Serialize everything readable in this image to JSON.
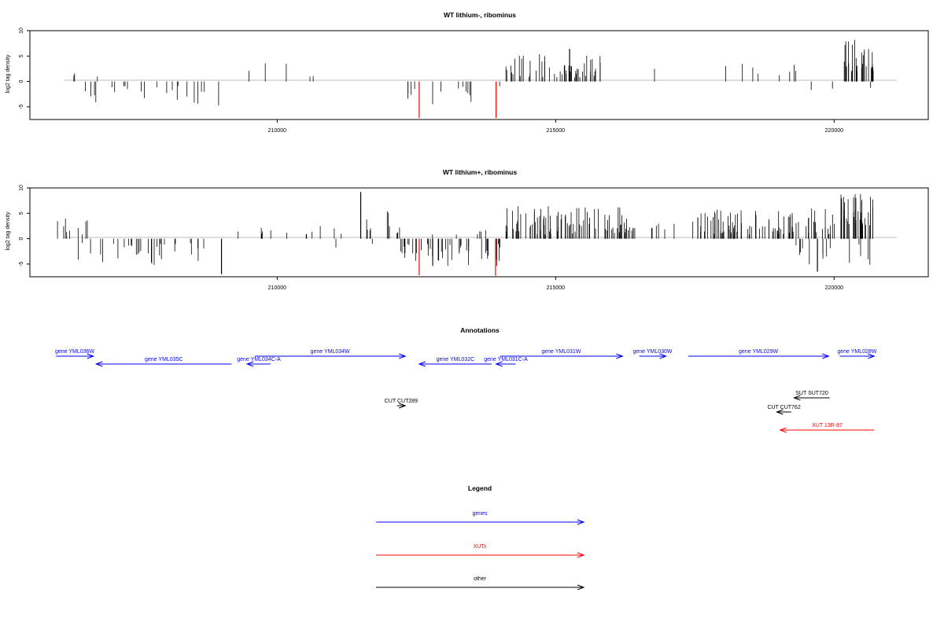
{
  "colors": {
    "bar_default": "#000000",
    "bar_highlight": "#ff0000",
    "genes": "#0000ff",
    "xuts": "#ff0000",
    "other": "#000000",
    "baseline": "#bebebe"
  },
  "chart_data": [
    {
      "type": "bar",
      "title": "WT lithium-, ribominus",
      "ylabel": "log2 tag density",
      "ylim": [
        -7.5,
        10
      ],
      "yticks": [
        -5,
        0,
        5,
        10
      ],
      "xlim": [
        205560,
        221690
      ],
      "xticks": [
        210000,
        215000,
        220000
      ],
      "xtick_labels": [
        "210000",
        "215000",
        "220000"
      ],
      "grid": false,
      "series": [
        {
          "segments": [
            {
              "start": 206100,
              "end": 206450,
              "sign": 1,
              "density": 0.45,
              "min": 0.8,
              "max": 4.6
            },
            {
              "start": 206450,
              "end": 206850,
              "sign": 1,
              "density": 0.08,
              "min": 0.5,
              "max": 3.3
            },
            {
              "start": 206400,
              "end": 209000,
              "sign": -1,
              "density": 0.85,
              "min": 0.8,
              "max": 4.8
            },
            {
              "start": 209400,
              "end": 212100,
              "sign": 1,
              "density": 0.18,
              "min": 0.8,
              "max": 3.6
            },
            {
              "start": 212300,
              "end": 214000,
              "sign": -1,
              "density": 0.75,
              "min": 0.8,
              "max": 4.6
            },
            {
              "start": 214100,
              "end": 215800,
              "sign": 1,
              "density": 3.0,
              "min": 0.8,
              "max": 5.5
            },
            {
              "start": 215800,
              "end": 220150,
              "sign": 1,
              "density": 0.2,
              "min": 0.8,
              "max": 4.6
            },
            {
              "start": 219500,
              "end": 220100,
              "sign": -1,
              "density": 0.35,
              "min": 0.8,
              "max": 4.0
            },
            {
              "start": 220150,
              "end": 220720,
              "sign": 1,
              "density": 6.0,
              "min": 2.0,
              "max": 9.0
            },
            {
              "start": 220300,
              "end": 220700,
              "sign": -1,
              "density": 0.12,
              "min": 0.8,
              "max": 2.6
            }
          ],
          "spikes": [
            {
              "x": 212550,
              "y": -7.2,
              "color": "red"
            },
            {
              "x": 213930,
              "y": -7.2,
              "color": "red"
            },
            {
              "x": 215250,
              "y": 6.4,
              "color": "black"
            }
          ]
        }
      ]
    },
    {
      "type": "bar",
      "title": "WT lithium+, ribominus",
      "ylabel": "log2 tag density",
      "ylim": [
        -7.5,
        10
      ],
      "yticks": [
        -5,
        0,
        5,
        10
      ],
      "xlim": [
        205560,
        221690
      ],
      "xticks": [
        210000,
        215000,
        220000
      ],
      "xtick_labels": [
        "210000",
        "215000",
        "220000"
      ],
      "grid": false,
      "series": [
        {
          "segments": [
            {
              "start": 206000,
              "end": 206600,
              "sign": 1,
              "density": 1.5,
              "min": 0.8,
              "max": 4.4
            },
            {
              "start": 206400,
              "end": 209000,
              "sign": -1,
              "density": 1.2,
              "min": 0.8,
              "max": 5.2
            },
            {
              "start": 209200,
              "end": 211500,
              "sign": 1,
              "density": 0.5,
              "min": 0.8,
              "max": 3.2
            },
            {
              "start": 211500,
              "end": 212200,
              "sign": 1,
              "density": 1.6,
              "min": 0.8,
              "max": 6.0
            },
            {
              "start": 211000,
              "end": 212200,
              "sign": -1,
              "density": 0.2,
              "min": 0.8,
              "max": 2.0
            },
            {
              "start": 212200,
              "end": 214000,
              "sign": -1,
              "density": 2.6,
              "min": 1.0,
              "max": 5.5
            },
            {
              "start": 212600,
              "end": 214000,
              "sign": 1,
              "density": 0.4,
              "min": 0.8,
              "max": 2.0
            },
            {
              "start": 214100,
              "end": 216300,
              "sign": 1,
              "density": 3.8,
              "min": 0.8,
              "max": 6.5
            },
            {
              "start": 216300,
              "end": 217300,
              "sign": 1,
              "density": 1.2,
              "min": 0.8,
              "max": 3.0
            },
            {
              "start": 217300,
              "end": 220100,
              "sign": 1,
              "density": 3.2,
              "min": 0.8,
              "max": 6.0
            },
            {
              "start": 219300,
              "end": 220700,
              "sign": -1,
              "density": 1.0,
              "min": 0.8,
              "max": 5.5
            },
            {
              "start": 220100,
              "end": 220720,
              "sign": 1,
              "density": 7.0,
              "min": 2.5,
              "max": 9.2
            }
          ],
          "spikes": [
            {
              "x": 209000,
              "y": -7.0,
              "color": "black"
            },
            {
              "x": 211500,
              "y": 9.2,
              "color": "black"
            },
            {
              "x": 212550,
              "y": -7.2,
              "color": "red"
            },
            {
              "x": 213920,
              "y": -7.3,
              "color": "red"
            },
            {
              "x": 219700,
              "y": -6.5,
              "color": "black"
            }
          ]
        }
      ]
    }
  ],
  "annotations": {
    "title": "Annotations",
    "features": [
      {
        "label": "gene YML036W",
        "start": 206030,
        "end": 206700,
        "strand": "+",
        "row": 0,
        "type": "genes"
      },
      {
        "label": "gene YML035C",
        "start": 206750,
        "end": 209180,
        "strand": "-",
        "row": 1,
        "type": "genes"
      },
      {
        "label": "gene YML034C-A",
        "start": 209460,
        "end": 209880,
        "strand": "-",
        "row": 1,
        "type": "genes"
      },
      {
        "label": "gene YML034W",
        "start": 209600,
        "end": 212300,
        "strand": "+",
        "row": 0,
        "type": "genes"
      },
      {
        "label": "gene YML032C",
        "start": 212550,
        "end": 213850,
        "strand": "-",
        "row": 1,
        "type": "genes"
      },
      {
        "label": "gene YML031C-A",
        "start": 213930,
        "end": 214280,
        "strand": "-",
        "row": 1,
        "type": "genes"
      },
      {
        "label": "gene YML031W",
        "start": 214000,
        "end": 216200,
        "strand": "+",
        "row": 0,
        "type": "genes"
      },
      {
        "label": "gene YML030W",
        "start": 216500,
        "end": 216980,
        "strand": "+",
        "row": 0,
        "type": "genes"
      },
      {
        "label": "gene YML029W",
        "start": 217380,
        "end": 219900,
        "strand": "+",
        "row": 0,
        "type": "genes"
      },
      {
        "label": "gene YML028W",
        "start": 220100,
        "end": 220720,
        "strand": "+",
        "row": 0,
        "type": "genes"
      },
      {
        "label": "CUT CUT289",
        "start": 212150,
        "end": 212300,
        "strand": "+",
        "row": 2,
        "type": "other"
      },
      {
        "label": "SUT SUT720",
        "start": 219280,
        "end": 219920,
        "strand": "-",
        "row": 3,
        "type": "other"
      },
      {
        "label": "CUT CUT762",
        "start": 218970,
        "end": 219230,
        "strand": "-",
        "row": 4,
        "type": "other"
      },
      {
        "label": "XUT 13R-87",
        "start": 219030,
        "end": 220720,
        "strand": "-",
        "row": 5,
        "type": "xuts"
      }
    ]
  },
  "legend": {
    "title": "Legend",
    "items": [
      {
        "label": "genes",
        "type": "genes"
      },
      {
        "label": "XUTs",
        "type": "xuts"
      },
      {
        "label": "other",
        "type": "other"
      }
    ]
  }
}
